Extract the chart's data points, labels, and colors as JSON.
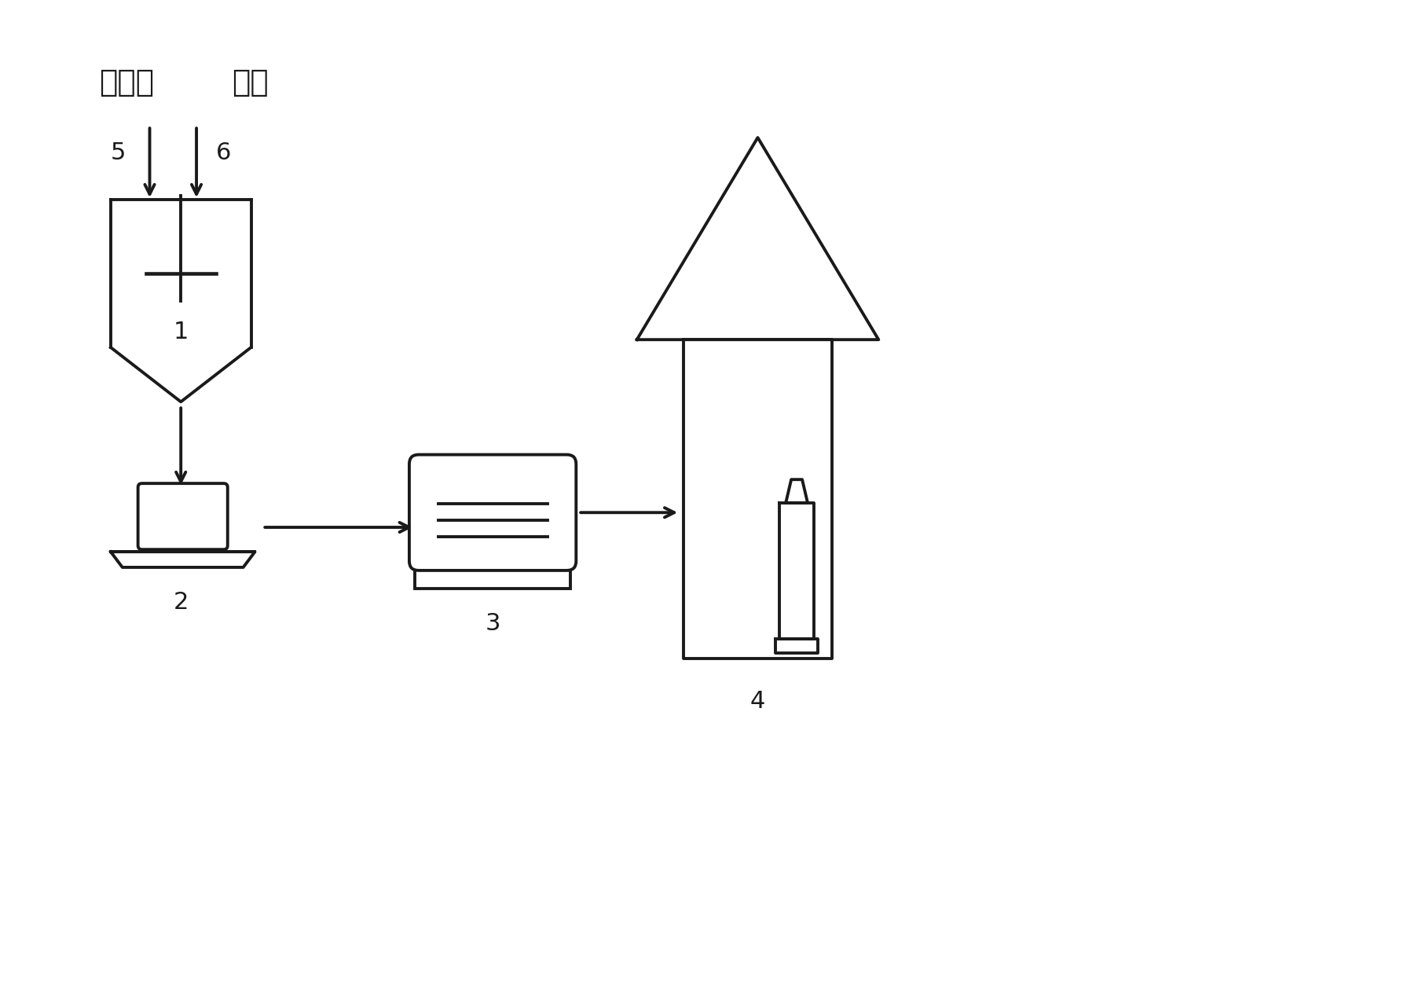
{
  "bg_color": "#ffffff",
  "line_color": "#1a1a1a",
  "lw": 2.8,
  "font_size_labels": 28,
  "font_size_numbers": 22,
  "figsize": [
    17.96,
    12.56
  ],
  "dpi": 100
}
